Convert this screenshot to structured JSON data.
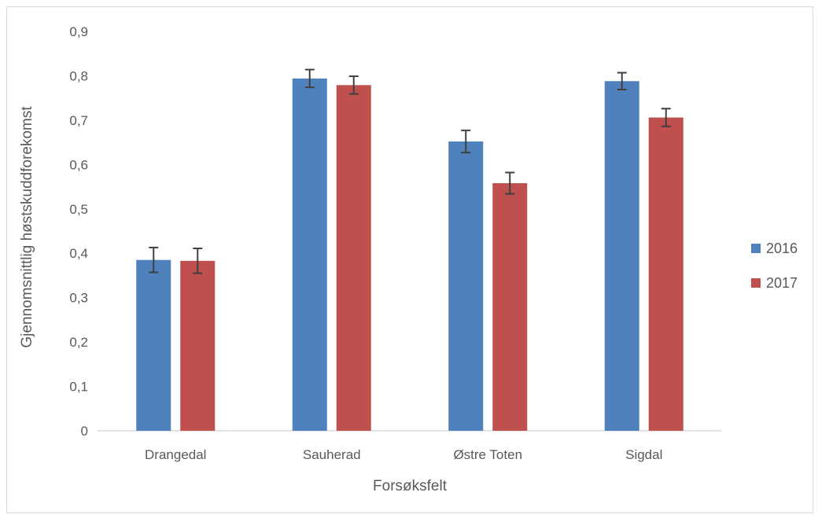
{
  "chart_data": {
    "type": "bar",
    "categories": [
      "Drangedal",
      "Sauherad",
      "Østre Toten",
      "Sigdal"
    ],
    "series": [
      {
        "name": "2016",
        "color": "#4f81bd",
        "values": [
          0.385,
          0.794,
          0.652,
          0.788
        ],
        "errors": [
          0.028,
          0.02,
          0.025,
          0.019
        ]
      },
      {
        "name": "2017",
        "color": "#c0504d",
        "values": [
          0.383,
          0.779,
          0.558,
          0.706
        ],
        "errors": [
          0.028,
          0.02,
          0.024,
          0.02
        ]
      }
    ],
    "xlabel": "Forsøksfelt",
    "ylabel": "Gjennomsnittlig høstskuddforekomst",
    "ylim": [
      0,
      0.9
    ],
    "yticks": [
      "0",
      "0,1",
      "0,2",
      "0,3",
      "0,4",
      "0,5",
      "0,6",
      "0,7",
      "0,8",
      "0,9"
    ],
    "grid": false,
    "legend_position": "right",
    "colors": {
      "axis": "#d9d9d9",
      "text": "#595959",
      "errorbar": "#404040"
    }
  }
}
